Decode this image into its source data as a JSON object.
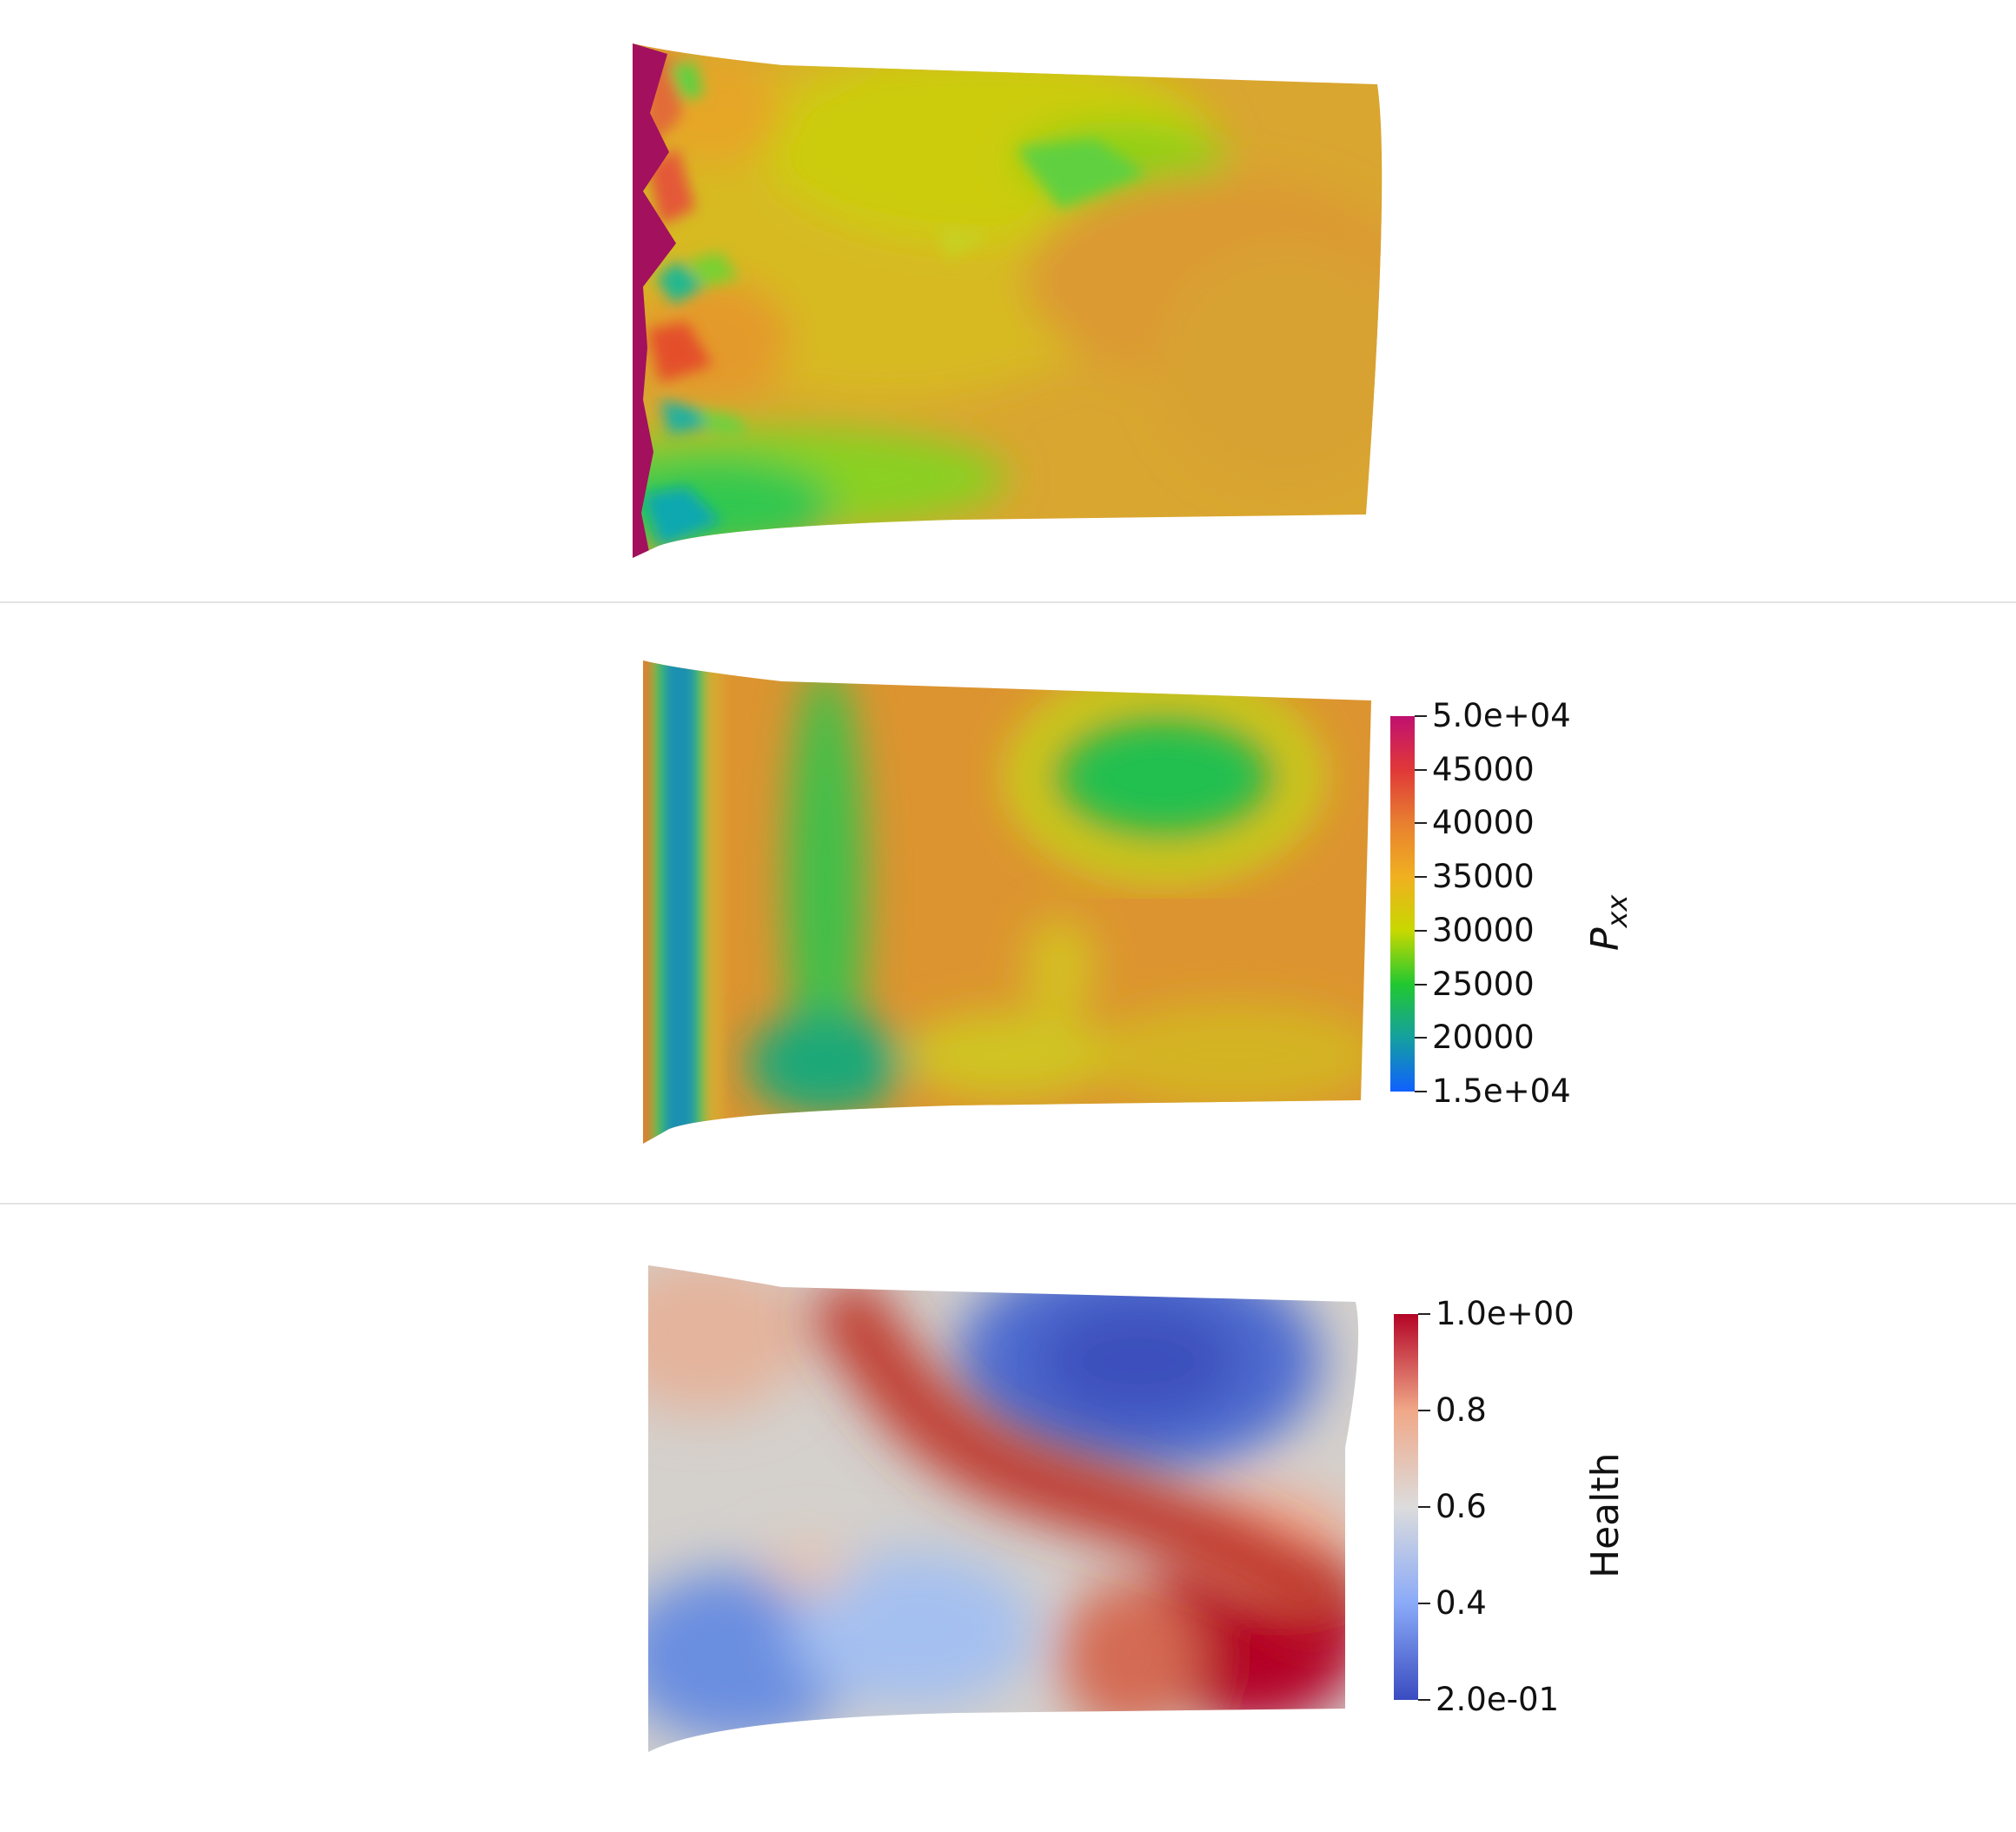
{
  "chart_data": [
    {
      "type": "heatmap",
      "title": "",
      "colorbar": null,
      "shared_colorbar_with": 1,
      "colormap": "rainbow"
    },
    {
      "type": "heatmap",
      "title": "",
      "colorbar": {
        "title_main": "P",
        "title_sub": "xx",
        "range": [
          15000,
          50000
        ],
        "ticks": [
          {
            "value": 50000,
            "label": "5.0e+04"
          },
          {
            "value": 45000,
            "label": "45000"
          },
          {
            "value": 40000,
            "label": "40000"
          },
          {
            "value": 35000,
            "label": "35000"
          },
          {
            "value": 30000,
            "label": "30000"
          },
          {
            "value": 25000,
            "label": "25000"
          },
          {
            "value": 20000,
            "label": "20000"
          },
          {
            "value": 15000,
            "label": "1.5e+04"
          }
        ],
        "colors": [
          "#1060ff",
          "#14a0a0",
          "#22c830",
          "#c8d800",
          "#f0b020",
          "#e88030",
          "#e03838",
          "#c01070"
        ]
      }
    },
    {
      "type": "heatmap",
      "title": "",
      "colorbar": {
        "title": "Health",
        "range": [
          0.2,
          1.0
        ],
        "ticks": [
          {
            "value": 1.0,
            "label": "1.0e+00"
          },
          {
            "value": 0.8,
            "label": "0.8"
          },
          {
            "value": 0.6,
            "label": "0.6"
          },
          {
            "value": 0.4,
            "label": "0.4"
          },
          {
            "value": 0.2,
            "label": "2.0e-01"
          }
        ],
        "colors": [
          "#3a4cc0",
          "#8aaaf8",
          "#dcdcdc",
          "#f0a888",
          "#b40426"
        ]
      }
    }
  ]
}
